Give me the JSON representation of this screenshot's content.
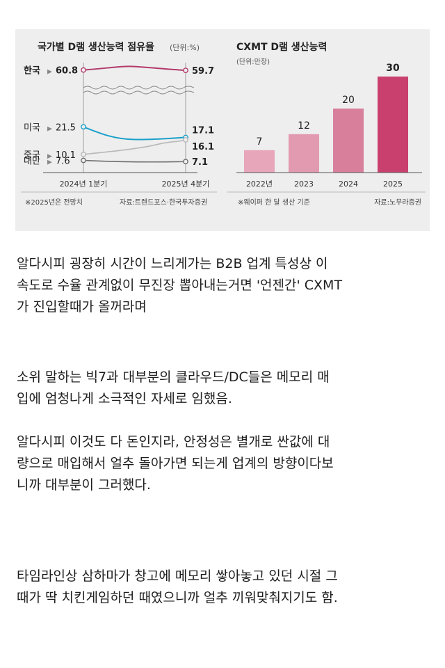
{
  "chart_data": [
    {
      "type": "line",
      "title": "국가별 D램 생산능력 점유율",
      "unit_note": "(단위:%)",
      "x": [
        "2024년 1분기",
        "2025년 4분기"
      ],
      "series": [
        {
          "name": "한국",
          "values": [
            60.8,
            59.7
          ],
          "color": "#b23a6a"
        },
        {
          "name": "미국",
          "values": [
            21.5,
            17.1
          ],
          "color": "#1aa0c8"
        },
        {
          "name": "중국",
          "values": [
            10.1,
            16.1
          ],
          "color": "#b8b8b8"
        },
        {
          "name": "대만",
          "values": [
            7.6,
            7.1
          ],
          "color": "#6e6e6e"
        }
      ],
      "start_labels": [
        "60.8",
        "21.5",
        "10.1",
        "7.6"
      ],
      "end_labels": [
        "59.7",
        "17.1",
        "16.1",
        "7.1"
      ],
      "axis_break": true,
      "footnote": "※2025년은 전망치",
      "source": "자료:트렌드포스·한국투자증권"
    },
    {
      "type": "bar",
      "title": "CXMT D램 생산능력",
      "unit_note": "(단위:만장)",
      "categories": [
        "2022년",
        "2023",
        "2024",
        "2025"
      ],
      "values": [
        7,
        12,
        20,
        30
      ],
      "colors": [
        "#e8a6ba",
        "#e29ab0",
        "#d87f9c",
        "#c9406f"
      ],
      "ylim": [
        0,
        30
      ],
      "footnote": "※웨이퍼 한 달 생산 기준",
      "source": "자료:노무라증권"
    }
  ],
  "post": {
    "paragraph1": [
      "알다시피 굉장히 시간이 느리게가는 B2B 업계 특성상 이",
      "속도로 수율 관계없이 무진장 뽑아내는거면 '언젠간' CXMT",
      "가 진입할때가 올꺼라며"
    ],
    "paragraph2": [
      "소위 말하는 빅7과 대부분의 클라우드/DC들은 메모리 매",
      "입에 엄청나게 소극적인 자세로 임했음."
    ],
    "paragraph3": [
      "알다시피 이것도 다 돈인지라, 안정성은 별개로 싼값에 대",
      "량으로 매입해서 얼추 돌아가면 되는게 업계의 방향이다보",
      "니까 대부분이 그러했다."
    ],
    "paragraph4": [
      "타임라인상 삼하마가 창고에 메모리 쌓아놓고 있던 시절 그",
      "때가 딱 치킨게임하던 때였으니까 얼추 끼워맞춰지기도 함."
    ]
  }
}
